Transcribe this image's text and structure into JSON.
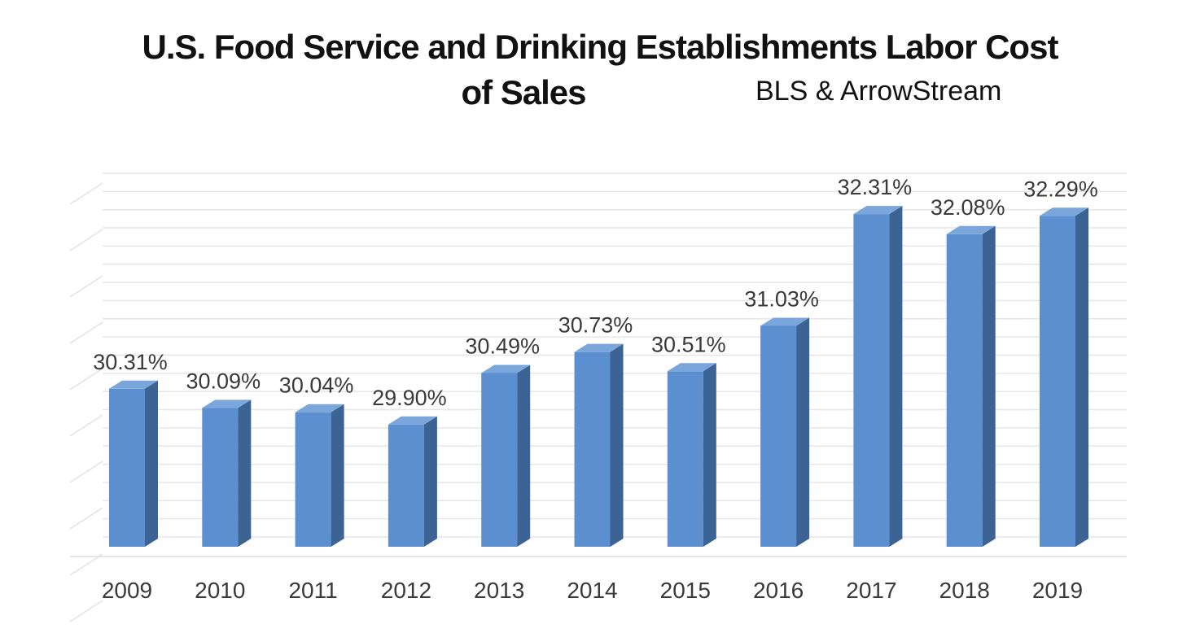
{
  "chart_data": {
    "type": "bar",
    "title_line1": "U.S. Food Service and Drinking Establishments Labor Cost",
    "title_line2": "of Sales",
    "subtitle": "BLS & ArrowStream",
    "xlabel": "",
    "ylabel": "",
    "categories": [
      "2009",
      "2010",
      "2011",
      "2012",
      "2013",
      "2014",
      "2015",
      "2016",
      "2017",
      "2018",
      "2019"
    ],
    "values": [
      30.31,
      30.09,
      30.04,
      29.9,
      30.49,
      30.73,
      30.51,
      31.03,
      32.31,
      32.08,
      32.29
    ],
    "data_labels": [
      "30.31%",
      "30.09%",
      "30.04%",
      "29.90%",
      "30.49%",
      "30.73%",
      "30.51%",
      "31.03%",
      "32.31%",
      "32.08%",
      "32.29%"
    ],
    "ylim": [
      28.5,
      32.6
    ],
    "grid": true,
    "legend": "none",
    "style": "3d-column",
    "colors": {
      "bar_front": "#5b8fd0",
      "bar_side": "#3b6394",
      "bar_top": "#7aa6dc",
      "grid": "#e6e6e6"
    }
  }
}
